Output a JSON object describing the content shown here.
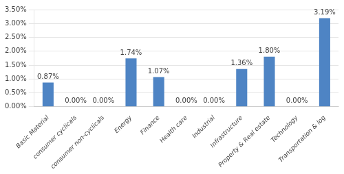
{
  "chart_data": {
    "type": "bar",
    "categories": [
      "Basic Material",
      "consumer cyclicals",
      "consumer non-cyclicals",
      "Energy",
      "Finance",
      "Health care",
      "Industrial",
      "Infrastructure",
      "Property & Real estate",
      "Technology",
      "Transportation & log"
    ],
    "values": [
      0.87,
      0.0,
      0.0,
      1.74,
      1.07,
      0.0,
      0.0,
      1.36,
      1.8,
      0.0,
      3.19
    ],
    "value_labels": [
      "0.87%",
      "0.00%",
      "0.00%",
      "1.74%",
      "1.07%",
      "0.00%",
      "0.00%",
      "1.36%",
      "1.80%",
      "0.00%",
      "3.19%"
    ],
    "color": "#4e84c4",
    "ylim": [
      0,
      3.5
    ],
    "yticks": [
      {
        "value": 0.0,
        "label": "0.00%"
      },
      {
        "value": 0.5,
        "label": "0.50%"
      },
      {
        "value": 1.0,
        "label": "1.00%"
      },
      {
        "value": 1.5,
        "label": "1.50%"
      },
      {
        "value": 2.0,
        "label": "2.00%"
      },
      {
        "value": 2.5,
        "label": "2.50%"
      },
      {
        "value": 3.0,
        "label": "3.00%"
      },
      {
        "value": 3.5,
        "label": "3.50%"
      }
    ],
    "grid": true,
    "data_labels": true
  }
}
